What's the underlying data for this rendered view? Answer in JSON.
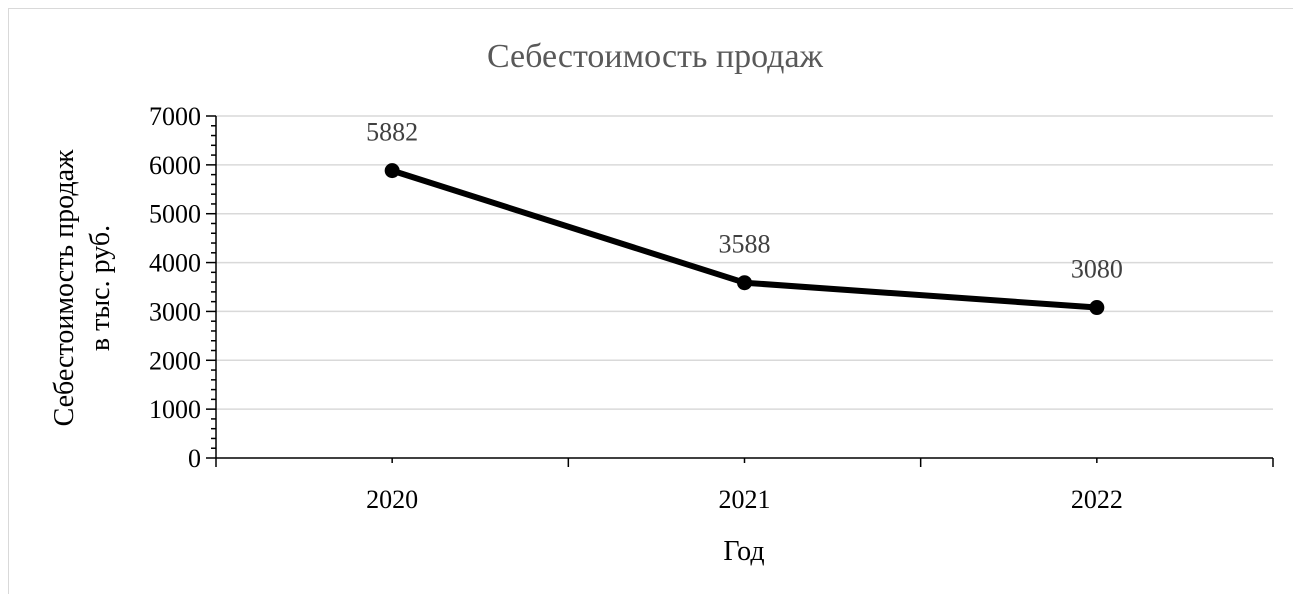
{
  "chart_data": {
    "type": "line",
    "title": "Себестоимость продаж",
    "xlabel": "Год",
    "ylabel": [
      "Себестоимость продаж",
      "в тыс. руб."
    ],
    "categories": [
      "2020",
      "2021",
      "2022"
    ],
    "series": [
      {
        "values": [
          5882,
          3588,
          3080
        ]
      }
    ],
    "data_labels": [
      "5882",
      "3588",
      "3080"
    ],
    "yticks": [
      "0",
      "1000",
      "2000",
      "3000",
      "4000",
      "5000",
      "6000",
      "7000"
    ],
    "ylim": [
      0,
      7000
    ],
    "grid": true,
    "line_color": "#000000",
    "grid_color": "#d9d9d9"
  }
}
